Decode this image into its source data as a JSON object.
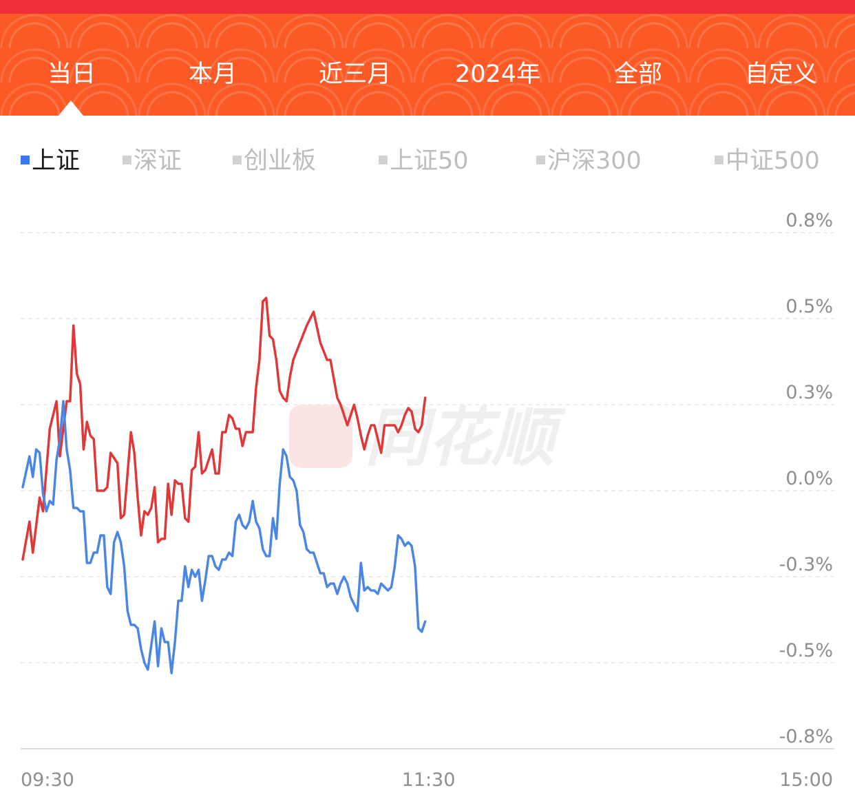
{
  "tabs": [
    {
      "label": "当日",
      "active": true
    },
    {
      "label": "本月",
      "active": false
    },
    {
      "label": "近三月",
      "active": false
    },
    {
      "label": "2024年",
      "active": false
    },
    {
      "label": "全部",
      "active": false
    },
    {
      "label": "自定义",
      "active": false
    }
  ],
  "indices": [
    {
      "label": "上证",
      "active": true
    },
    {
      "label": "深证",
      "active": false
    },
    {
      "label": "创业板",
      "active": false
    },
    {
      "label": "上证50",
      "active": false
    },
    {
      "label": "沪深300",
      "active": false
    },
    {
      "label": "中证500",
      "active": false
    }
  ],
  "watermark": "同花顺",
  "colors": {
    "banner": "#fb5a26",
    "banner_top": "#ef2e3a",
    "active_index": "#3978f2",
    "red_line": "#e03838",
    "blue_line": "#4a86e2"
  },
  "chart_data": {
    "type": "line",
    "y_tick_labels": [
      "0.8%",
      "0.5%",
      "0.3%",
      "0.0%",
      "-0.3%",
      "-0.5%",
      "-0.8%"
    ],
    "y_ticks": [
      0.75,
      0.5,
      0.25,
      0.0,
      -0.25,
      -0.5,
      -0.75
    ],
    "ylim": [
      -0.75,
      0.75
    ],
    "x_tick_labels": [
      "09:30",
      "11:30",
      "15:00"
    ],
    "x_ticks": [
      0,
      120,
      240
    ],
    "xlim": [
      0,
      240
    ],
    "grid": true,
    "series": [
      {
        "color": "#e03838",
        "x": [
          0,
          2,
          3,
          5,
          6,
          8,
          10,
          11,
          13,
          14,
          15,
          16,
          17,
          18,
          19,
          20,
          21,
          22,
          24,
          25,
          26,
          28,
          29,
          30,
          32,
          33,
          34,
          35,
          36,
          37,
          38,
          39,
          40,
          41,
          42,
          43,
          44,
          45,
          46,
          47,
          48,
          49,
          50,
          51,
          52,
          53,
          54,
          56,
          57,
          58,
          59,
          60,
          61,
          62,
          63,
          64,
          65,
          66,
          67,
          68,
          69,
          70,
          71,
          72,
          73,
          74,
          75,
          76,
          77,
          78,
          79,
          80,
          82,
          84,
          85,
          86,
          88,
          90,
          91,
          93,
          94,
          96,
          98,
          99,
          100,
          101,
          102,
          103,
          104,
          105,
          106,
          107,
          108,
          110,
          111,
          112,
          113,
          114,
          115,
          116,
          117,
          118,
          119
        ],
        "values": [
          -0.2,
          -0.09,
          -0.18,
          -0.02,
          -0.06,
          0.18,
          0.26,
          0.1,
          0.26,
          0.26,
          0.48,
          0.34,
          0.31,
          0.12,
          0.2,
          0.16,
          0.15,
          0.0,
          0.0,
          0.01,
          0.11,
          0.08,
          -0.08,
          -0.07,
          0.17,
          0.11,
          -0.02,
          -0.13,
          -0.06,
          -0.07,
          -0.05,
          0.01,
          -0.15,
          -0.14,
          -0.14,
          0.02,
          -0.07,
          0.03,
          0.02,
          0.02,
          -0.08,
          -0.09,
          0.06,
          0.07,
          0.17,
          0.05,
          0.06,
          0.12,
          0.05,
          0.05,
          0.17,
          0.17,
          0.22,
          0.21,
          0.18,
          0.18,
          0.13,
          0.17,
          0.17,
          0.17,
          0.3,
          0.38,
          0.55,
          0.56,
          0.45,
          0.44,
          0.38,
          0.29,
          0.27,
          0.26,
          0.33,
          0.38,
          0.43,
          0.48,
          0.5,
          0.52,
          0.43,
          0.38,
          0.38,
          0.27,
          0.25,
          0.19,
          0.25,
          0.21,
          0.16,
          0.12,
          0.16,
          0.19,
          0.19,
          0.15,
          0.11,
          0.19,
          0.19,
          0.19,
          0.17,
          0.19,
          0.22,
          0.24,
          0.23,
          0.18,
          0.17,
          0.19,
          0.27
        ]
      },
      {
        "color": "#4a86e2",
        "x": [
          0,
          2,
          3,
          4,
          5,
          6,
          7,
          8,
          9,
          10,
          11,
          12,
          13,
          14,
          15,
          16,
          17,
          18,
          19,
          20,
          21,
          22,
          23,
          24,
          25,
          26,
          27,
          28,
          29,
          30,
          31,
          32,
          33,
          34,
          35,
          36,
          37,
          38,
          39,
          40,
          41,
          42,
          43,
          44,
          45,
          46,
          47,
          48,
          49,
          50,
          51,
          52,
          53,
          54,
          55,
          56,
          57,
          58,
          59,
          60,
          61,
          62,
          63,
          64,
          65,
          66,
          67,
          68,
          69,
          70,
          71,
          72,
          73,
          74,
          75,
          76,
          77,
          78,
          79,
          80,
          81,
          82,
          83,
          84,
          85,
          86,
          87,
          88,
          89,
          90,
          91,
          92,
          93,
          94,
          95,
          96,
          97,
          98,
          99,
          100,
          101,
          102,
          103,
          104,
          105,
          106,
          107,
          108,
          109,
          110,
          111,
          112,
          113,
          114,
          115,
          116,
          117,
          118,
          119
        ],
        "values": [
          0.01,
          0.1,
          0.04,
          0.12,
          0.11,
          -0.01,
          -0.06,
          -0.03,
          -0.04,
          0.09,
          0.15,
          0.26,
          0.12,
          0.06,
          -0.05,
          -0.05,
          -0.06,
          -0.06,
          -0.21,
          -0.21,
          -0.18,
          -0.18,
          -0.13,
          -0.13,
          -0.28,
          -0.3,
          -0.15,
          -0.12,
          -0.15,
          -0.22,
          -0.35,
          -0.39,
          -0.39,
          -0.4,
          -0.46,
          -0.5,
          -0.52,
          -0.45,
          -0.38,
          -0.51,
          -0.4,
          -0.44,
          -0.44,
          -0.53,
          -0.44,
          -0.32,
          -0.32,
          -0.22,
          -0.28,
          -0.23,
          -0.25,
          -0.23,
          -0.32,
          -0.26,
          -0.19,
          -0.19,
          -0.22,
          -0.23,
          -0.2,
          -0.2,
          -0.18,
          -0.19,
          -0.09,
          -0.07,
          -0.1,
          -0.11,
          -0.09,
          -0.03,
          -0.09,
          -0.11,
          -0.17,
          -0.19,
          -0.19,
          -0.08,
          -0.14,
          0.02,
          0.12,
          0.1,
          0.04,
          0.03,
          0.0,
          -0.1,
          -0.12,
          -0.17,
          -0.18,
          -0.18,
          -0.21,
          -0.24,
          -0.24,
          -0.28,
          -0.27,
          -0.27,
          -0.3,
          -0.27,
          -0.25,
          -0.27,
          -0.31,
          -0.33,
          -0.35,
          -0.21,
          -0.29,
          -0.28,
          -0.29,
          -0.29,
          -0.3,
          -0.27,
          -0.28,
          -0.29,
          -0.28,
          -0.22,
          -0.13,
          -0.14,
          -0.16,
          -0.15,
          -0.16,
          -0.22,
          -0.4,
          -0.41,
          -0.38
        ]
      }
    ]
  }
}
